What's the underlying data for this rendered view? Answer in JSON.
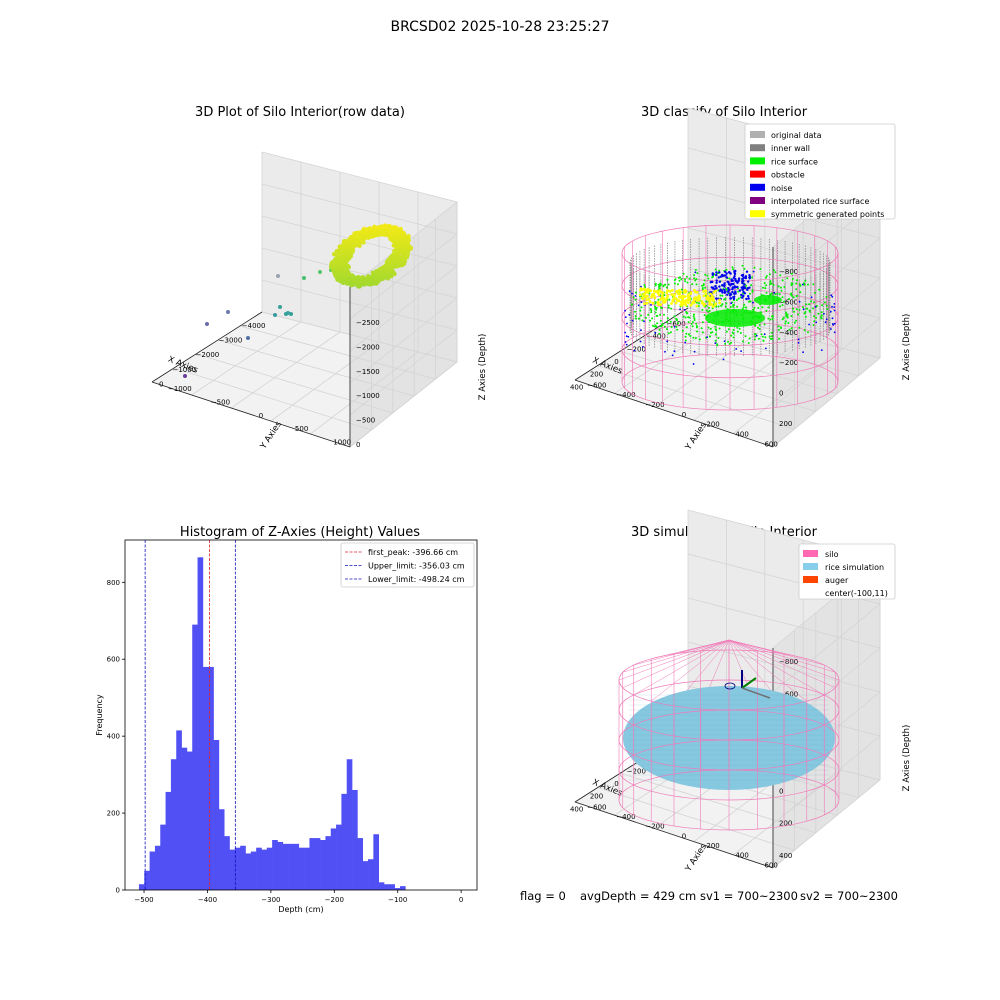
{
  "suptitle": "BRCSD02 2025-10-28 23:25:27",
  "footer": {
    "flag": "flag = 0",
    "avg": "avgDepth = 429 cm",
    "sv1": "sv1 = 700~2300",
    "sv2": "sv2 = 700~2300"
  },
  "colors": {
    "hist_bar": "#5050f5",
    "first_peak_line": "#e02020",
    "limit_line": "#1010c0",
    "silo_wire": "#f07ab8",
    "inner_wall": "#808080",
    "rice_surface": "#00ee00",
    "noise": "#0000ee",
    "symmetric": "#ffff00",
    "rice_sim": "#86c8e0",
    "auger": "#ff4500"
  },
  "chart_data": [
    {
      "type": "scatter",
      "panel": "raw",
      "title": "3D Plot of Silo Interior(row data)",
      "xlabel": "X Axies",
      "ylabel": "Y Axies",
      "zlabel": "Z Axies (Depth)",
      "x_ticks": [
        "−4000",
        "−3000",
        "−2000",
        "−1000",
        "0"
      ],
      "y_ticks": [
        "1000",
        "500",
        "0",
        "−500",
        "−1000"
      ],
      "z_ticks": [
        "0",
        "−500",
        "−1000",
        "−1500",
        "−2000",
        "−2500"
      ],
      "xlim": [
        -4500,
        500
      ],
      "ylim": [
        -1200,
        1100
      ],
      "zlim": [
        -2800,
        100
      ]
    },
    {
      "type": "scatter",
      "panel": "classify",
      "title": "3D classify of Silo Interior",
      "xlabel": "X Axies",
      "ylabel": "Y Axies",
      "zlabel": "Z Axies (Depth)",
      "x_ticks": [
        "−600",
        "−400",
        "−200",
        "0",
        "200",
        "400"
      ],
      "y_ticks": [
        "600",
        "400",
        "200",
        "0",
        "−200",
        "−400",
        "−600"
      ],
      "z_ticks": [
        "200",
        "0",
        "−200",
        "−400",
        "−600",
        "−800"
      ],
      "legend": [
        {
          "label": "original data",
          "color": "#b0b0b0"
        },
        {
          "label": "inner wall",
          "color": "#808080"
        },
        {
          "label": "rice surface",
          "color": "#00ee00"
        },
        {
          "label": "obstacle",
          "color": "#ff0000"
        },
        {
          "label": "noise",
          "color": "#0000ee"
        },
        {
          "label": "interpolated rice surface",
          "color": "#800080"
        },
        {
          "label": "symmetric generated points",
          "color": "#ffff00"
        }
      ]
    },
    {
      "type": "bar",
      "panel": "histogram",
      "title": "Histogram of Z-Axies (Height) Values",
      "xlabel": "Depth (cm)",
      "ylabel": "Frequency",
      "xlim": [
        -530,
        25
      ],
      "ylim": [
        0,
        910
      ],
      "x_ticks": [
        -500,
        -400,
        -300,
        -200,
        -100,
        0
      ],
      "x_tick_labels": [
        "−500",
        "−400",
        "−300",
        "−200",
        "−100",
        "0"
      ],
      "y_ticks": [
        0,
        200,
        400,
        600,
        800
      ],
      "bin_start": -508,
      "bin_width": 8.4,
      "values": [
        15,
        50,
        100,
        115,
        170,
        255,
        340,
        415,
        370,
        360,
        690,
        865,
        580,
        580,
        390,
        210,
        140,
        105,
        110,
        115,
        95,
        100,
        110,
        105,
        110,
        130,
        125,
        120,
        120,
        120,
        110,
        110,
        135,
        135,
        130,
        140,
        160,
        170,
        250,
        340,
        260,
        135,
        75,
        80,
        145,
        20,
        15,
        15,
        5,
        10
      ],
      "vlines": [
        {
          "x": -396.66,
          "label": "first_peak: -396.66 cm",
          "color": "#e02020"
        },
        {
          "x": -356.03,
          "label": "Upper_limit: -356.03 cm",
          "color": "#1010c0"
        },
        {
          "x": -498.24,
          "label": "Lower_limit: -498.24 cm",
          "color": "#1010c0"
        }
      ]
    },
    {
      "type": "scatter",
      "panel": "simulation",
      "title": "3D simulation of Silo Interior",
      "xlabel": "X Axies",
      "ylabel": "Y Axies",
      "zlabel": "Z Axies (Depth)",
      "x_ticks": [
        "−600",
        "−400",
        "−200",
        "0",
        "200",
        "400"
      ],
      "y_ticks": [
        "600",
        "400",
        "200",
        "0",
        "−200",
        "−400",
        "−600"
      ],
      "z_ticks": [
        "400",
        "200",
        "0",
        "−200",
        "−400",
        "−600",
        "−800"
      ],
      "legend": [
        {
          "label": "silo",
          "color": "#ff69b4"
        },
        {
          "label": "rice simulation",
          "color": "#87ceeb"
        },
        {
          "label": "auger",
          "color": "#ff4500"
        },
        {
          "label": "center(-100,11)",
          "color": ""
        }
      ]
    }
  ]
}
